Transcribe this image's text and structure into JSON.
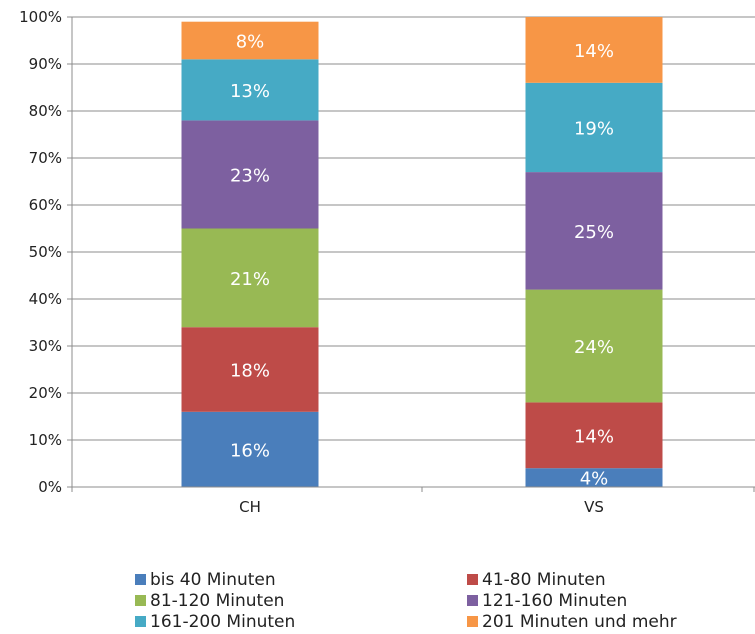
{
  "chart_data": {
    "type": "bar",
    "stacked": true,
    "categories": [
      "CH",
      "VS"
    ],
    "ylim": [
      0,
      100
    ],
    "yticks": [
      "0%",
      "10%",
      "20%",
      "30%",
      "40%",
      "50%",
      "60%",
      "70%",
      "80%",
      "90%",
      "100%"
    ],
    "grid": true,
    "legend_position": "bottom",
    "series": [
      {
        "name": "bis 40 Minuten",
        "color": "#4a7ebb",
        "values": [
          16,
          4
        ],
        "labels": [
          "16%",
          "4%"
        ]
      },
      {
        "name": "41-80 Minuten",
        "color": "#be4b48",
        "values": [
          18,
          14
        ],
        "labels": [
          "18%",
          "14%"
        ]
      },
      {
        "name": "81-120 Minuten",
        "color": "#98b954",
        "values": [
          21,
          24
        ],
        "labels": [
          "21%",
          "24%"
        ]
      },
      {
        "name": "121-160 Minuten",
        "color": "#7d60a0",
        "values": [
          23,
          25
        ],
        "labels": [
          "23%",
          "25%"
        ]
      },
      {
        "name": "161-200 Minuten",
        "color": "#46aac5",
        "values": [
          13,
          19
        ],
        "labels": [
          "13%",
          "19%"
        ]
      },
      {
        "name": "201 Minuten und mehr",
        "color": "#f79646",
        "values": [
          8,
          14
        ],
        "labels": [
          "8%",
          "14%"
        ]
      }
    ]
  }
}
